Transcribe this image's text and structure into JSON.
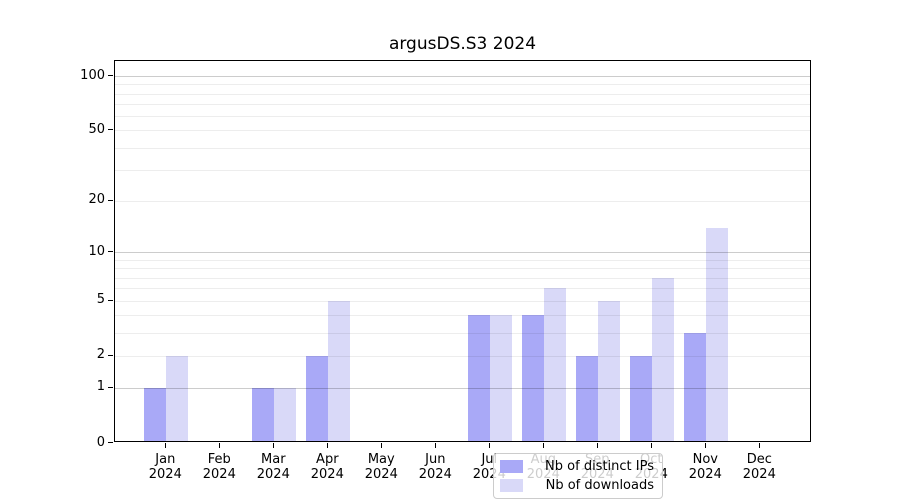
{
  "chart_data": {
    "type": "bar",
    "title": "argusDS.S3 2024",
    "categories": [
      "Jan",
      "Feb",
      "Mar",
      "Apr",
      "May",
      "Jun",
      "Jul",
      "Aug",
      "Sep",
      "Oct",
      "Nov",
      "Dec"
    ],
    "category_year": "2024",
    "series": [
      {
        "name": "Nb of distinct IPs",
        "color": "#a9a9f7",
        "values": [
          1,
          0,
          1,
          2,
          0,
          0,
          4,
          4,
          2,
          2,
          3,
          0
        ]
      },
      {
        "name": "Nb of downloads",
        "color": "#d9d9f8",
        "values": [
          2,
          0,
          1,
          5,
          0,
          0,
          4,
          6,
          5,
          7,
          14,
          0
        ]
      }
    ],
    "yaxis": {
      "scale": "symlog",
      "labeled_ticks": [
        0,
        1,
        2,
        5,
        10,
        20,
        50,
        100
      ],
      "major_gridlines": [
        1,
        10,
        100
      ],
      "minor_gridlines": [
        2,
        3,
        4,
        5,
        6,
        7,
        8,
        9,
        20,
        30,
        40,
        50,
        60,
        70,
        80,
        90
      ],
      "range_max": 115
    },
    "xaxis": {
      "label_lines": 2
    },
    "legend": {
      "position": "lower center"
    },
    "grid": true,
    "colors": {
      "background": "#ffffff",
      "spine": "#000000",
      "grid_major": "#cdcdcd",
      "grid_minor": "#ededed"
    }
  }
}
